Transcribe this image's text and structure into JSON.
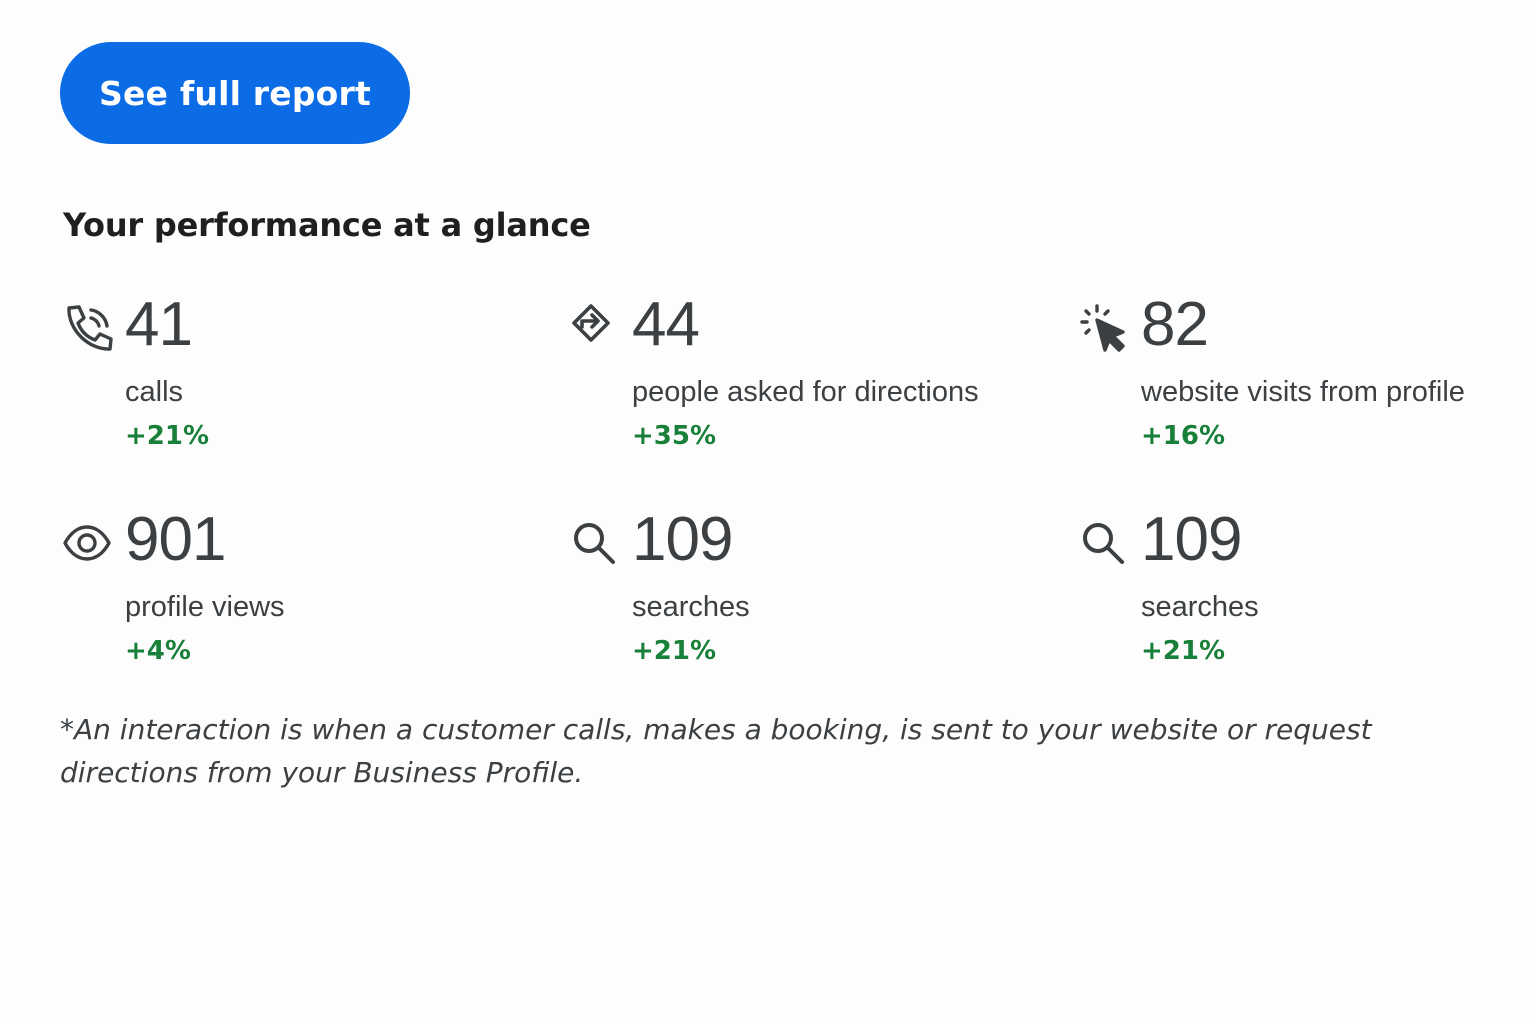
{
  "header": {
    "button_label": "See full report"
  },
  "section": {
    "title": "Your performance at a glance"
  },
  "metrics": [
    {
      "icon": "phone-icon",
      "value": "41",
      "label": "calls",
      "change": "+21%"
    },
    {
      "icon": "directions-icon",
      "value": "44",
      "label": "people asked for directions",
      "change": "+35%"
    },
    {
      "icon": "click-cursor-icon",
      "value": "82",
      "label": "website visits from profile",
      "change": "+16%"
    },
    {
      "icon": "eye-icon",
      "value": "901",
      "label": "profile views",
      "change": "+4%"
    },
    {
      "icon": "search-icon",
      "value": "109",
      "label": "searches",
      "change": "+21%"
    },
    {
      "icon": "search-icon",
      "value": "109",
      "label": "searches",
      "change": "+21%"
    }
  ],
  "footnote": "*An interaction is when a customer calls, makes a booking, is sent to your website or request directions from your Business Profile.",
  "colors": {
    "accent": "#0b6ce6",
    "positive": "#188038",
    "text": "#3c4043"
  }
}
